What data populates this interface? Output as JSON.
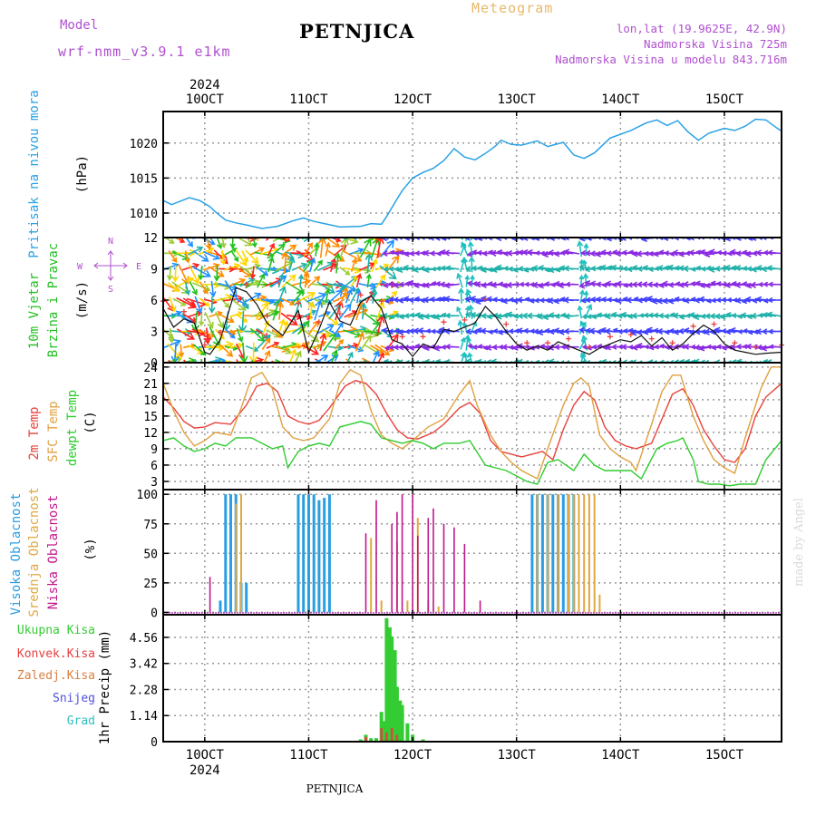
{
  "header": {
    "title": "PETNJICA",
    "subtitle": "Meteogram",
    "model_label": "Model",
    "model_name": "wrf-nmm_v3.9.1  e1km",
    "info_lines": [
      "lon,lat (19.9625E, 42.9N)",
      "Nadmorska Visina 725m",
      "Nadmorska Visina u modelu 843.716m"
    ]
  },
  "footer": {
    "station": "PETNJICA",
    "watermark": "made by Angel"
  },
  "colors": {
    "pressure": "#2aa2e6",
    "wind_label": "#22c022",
    "temp2m": "#e8413c",
    "sfc": "#e0a040",
    "dewpt": "#2ecc2e",
    "high_cloud": "#2a9ee0",
    "mid_cloud": "#e0a840",
    "low_cloud": "#c0188a",
    "total_precip": "#33cc33",
    "conv_precip": "#e84040",
    "snow_grid": "#d88040",
    "snow": "#5050e0",
    "graupel": "#30c0c0",
    "arrow_key": "#b050d0"
  },
  "chart_data": [
    {
      "type": "line",
      "title": "",
      "ylabel": [
        "Pritisak na nivou mora",
        "(hPa)"
      ],
      "x_top_labels": [
        "10OCT",
        "11OCT",
        "12OCT",
        "13OCT",
        "14OCT",
        "15OCT"
      ],
      "x_top_year": "2024",
      "x_range_days": [
        9.6,
        15.55
      ],
      "ylim": [
        1006.5,
        1024.5
      ],
      "yticks": [
        1010,
        1015,
        1020
      ],
      "series": [
        {
          "name": "Pritisak na nivou mora",
          "x": [
            9.6,
            9.68,
            9.75,
            9.85,
            9.95,
            10.05,
            10.1,
            10.2,
            10.3,
            10.4,
            10.55,
            10.7,
            10.85,
            10.95,
            11.05,
            11.15,
            11.3,
            11.5,
            11.6,
            11.7,
            11.75,
            11.85,
            11.9,
            12.0,
            12.1,
            12.2,
            12.3,
            12.4,
            12.5,
            12.6,
            12.7,
            12.8,
            12.85,
            12.95,
            13.05,
            13.2,
            13.3,
            13.45,
            13.55,
            13.65,
            13.75,
            13.9,
            14.1,
            14.25,
            14.35,
            14.45,
            14.55,
            14.65,
            14.75,
            14.85,
            15.0,
            15.1,
            15.2,
            15.3,
            15.4,
            15.5,
            15.55
          ],
          "values": [
            1011.8,
            1011.2,
            1011.6,
            1012.2,
            1011.8,
            1010.9,
            1010.2,
            1009.0,
            1008.6,
            1008.3,
            1007.8,
            1008.1,
            1008.9,
            1009.3,
            1008.8,
            1008.5,
            1008.0,
            1008.1,
            1008.5,
            1008.4,
            1009.5,
            1012.0,
            1013.2,
            1015.0,
            1015.8,
            1016.4,
            1017.5,
            1019.2,
            1018.0,
            1017.6,
            1018.5,
            1019.6,
            1020.4,
            1019.8,
            1019.7,
            1020.3,
            1019.5,
            1020.1,
            1018.3,
            1017.8,
            1018.6,
            1020.7,
            1021.8,
            1022.9,
            1023.3,
            1022.5,
            1023.2,
            1021.6,
            1020.4,
            1021.4,
            1022.1,
            1021.8,
            1022.4,
            1023.4,
            1023.3,
            1022.2,
            1021.7
          ]
        }
      ]
    },
    {
      "type": "line",
      "title": "",
      "ylabel": [
        "10m Vjetar",
        "Brzina i Pravac",
        "(m/s)"
      ],
      "arrow_key": {
        "top": "N",
        "left": "W",
        "right": "E",
        "bottom": "S"
      },
      "ylim": [
        0,
        12
      ],
      "yticks": [
        0,
        3,
        6,
        9,
        12
      ],
      "series": [
        {
          "name": "brzina vjetra",
          "x": [
            9.6,
            9.7,
            9.8,
            9.9,
            10.0,
            10.05,
            10.15,
            10.3,
            10.4,
            10.5,
            10.6,
            10.75,
            10.9,
            11.0,
            11.1,
            11.2,
            11.3,
            11.4,
            11.5,
            11.6,
            11.7,
            11.8,
            11.9,
            12.0,
            12.1,
            12.2,
            12.3,
            12.4,
            12.5,
            12.6,
            12.7,
            12.8,
            12.9,
            13.0,
            13.1,
            13.2,
            13.3,
            13.4,
            13.5,
            13.6,
            13.7,
            13.8,
            13.9,
            14.0,
            14.1,
            14.2,
            14.3,
            14.4,
            14.5,
            14.6,
            14.7,
            14.8,
            14.9,
            15.0,
            15.1,
            15.2,
            15.3,
            15.4,
            15.55
          ],
          "values": [
            5.2,
            3.4,
            4.2,
            3.8,
            1.0,
            0.8,
            2.2,
            7.2,
            6.8,
            5.6,
            3.8,
            2.6,
            5.0,
            1.0,
            3.2,
            5.8,
            4.0,
            3.6,
            5.8,
            6.4,
            5.2,
            2.2,
            1.8,
            0.6,
            1.8,
            1.4,
            3.2,
            3.0,
            3.4,
            3.8,
            5.4,
            4.4,
            3.0,
            1.8,
            1.2,
            1.6,
            1.2,
            2.0,
            1.6,
            1.2,
            0.8,
            1.4,
            1.8,
            2.2,
            2.0,
            2.6,
            1.6,
            2.4,
            1.2,
            1.8,
            2.8,
            3.6,
            3.0,
            1.8,
            1.2,
            1.0,
            0.8,
            0.9,
            1.0
          ]
        }
      ]
    },
    {
      "type": "line",
      "title": "",
      "ylabel": [
        "2m Temp",
        "SFC Temp",
        "dewpt Temp",
        "(C)"
      ],
      "ylim": [
        1.5,
        24.8
      ],
      "yticks": [
        3,
        6,
        9,
        12,
        15,
        18,
        21,
        24
      ],
      "series": [
        {
          "name": "2m Temp",
          "x": [
            9.6,
            9.7,
            9.8,
            9.9,
            10.0,
            10.1,
            10.25,
            10.4,
            10.5,
            10.6,
            10.7,
            10.8,
            10.9,
            11.0,
            11.1,
            11.2,
            11.35,
            11.45,
            11.55,
            11.65,
            11.75,
            11.85,
            11.95,
            12.05,
            12.2,
            12.3,
            12.45,
            12.55,
            12.65,
            12.75,
            12.85,
            12.95,
            13.05,
            13.15,
            13.25,
            13.35,
            13.45,
            13.55,
            13.65,
            13.75,
            13.85,
            13.95,
            14.05,
            14.15,
            14.3,
            14.4,
            14.5,
            14.6,
            14.7,
            14.8,
            14.9,
            15.0,
            15.1,
            15.2,
            15.3,
            15.4,
            15.55
          ],
          "values": [
            18.5,
            16.5,
            14.0,
            12.8,
            13.0,
            13.8,
            13.5,
            17.0,
            20.5,
            21.0,
            19.5,
            15.0,
            14.0,
            13.5,
            14.2,
            16.5,
            20.5,
            21.5,
            21.0,
            19.0,
            15.5,
            12.5,
            11.0,
            10.8,
            12.0,
            13.5,
            16.5,
            17.5,
            15.5,
            10.5,
            8.5,
            8.0,
            7.5,
            8.0,
            8.5,
            7.0,
            12.5,
            17.0,
            19.5,
            18.0,
            13.0,
            10.5,
            9.5,
            9.0,
            10.0,
            14.5,
            19.0,
            20.0,
            17.0,
            12.5,
            9.5,
            7.0,
            6.5,
            9.0,
            15.0,
            18.5,
            21.0
          ]
        },
        {
          "name": "SFC Temp",
          "x": [
            9.6,
            9.7,
            9.8,
            9.9,
            10.0,
            10.1,
            10.25,
            10.35,
            10.45,
            10.55,
            10.65,
            10.75,
            10.85,
            10.95,
            11.05,
            11.2,
            11.3,
            11.4,
            11.5,
            11.6,
            11.7,
            11.8,
            11.9,
            12.0,
            12.15,
            12.3,
            12.45,
            12.55,
            12.62,
            12.75,
            12.85,
            12.95,
            13.05,
            13.15,
            13.2,
            13.3,
            13.45,
            13.55,
            13.62,
            13.7,
            13.8,
            13.9,
            14.0,
            14.1,
            14.15,
            14.3,
            14.4,
            14.5,
            14.58,
            14.7,
            14.8,
            14.9,
            15.0,
            15.1,
            15.2,
            15.35,
            15.45,
            15.55
          ],
          "values": [
            21.0,
            16.0,
            12.0,
            9.5,
            10.5,
            12.0,
            11.5,
            16.5,
            22.0,
            23.0,
            20.0,
            13.0,
            11.0,
            10.5,
            11.0,
            14.5,
            21.0,
            23.5,
            22.5,
            16.0,
            11.5,
            10.0,
            9.0,
            10.5,
            13.0,
            14.5,
            19.0,
            21.5,
            17.0,
            11.5,
            8.5,
            6.5,
            5.0,
            4.0,
            3.5,
            9.0,
            17.0,
            21.0,
            22.0,
            20.5,
            11.5,
            9.0,
            7.5,
            6.5,
            5.0,
            13.5,
            19.5,
            22.5,
            22.5,
            15.0,
            10.5,
            7.0,
            5.5,
            4.5,
            11.0,
            20.0,
            24.0,
            24.0
          ]
        },
        {
          "name": "dewpt Temp",
          "x": [
            9.6,
            9.7,
            9.8,
            9.9,
            10.0,
            10.1,
            10.2,
            10.3,
            10.45,
            10.55,
            10.65,
            10.75,
            10.8,
            10.9,
            11.0,
            11.1,
            11.2,
            11.3,
            11.4,
            11.5,
            11.6,
            11.7,
            11.8,
            11.9,
            12.0,
            12.1,
            12.2,
            12.3,
            12.45,
            12.55,
            12.7,
            12.8,
            12.9,
            13.0,
            13.1,
            13.2,
            13.3,
            13.4,
            13.55,
            13.65,
            13.75,
            13.85,
            13.95,
            14.1,
            14.2,
            14.35,
            14.45,
            14.55,
            14.6,
            14.7,
            14.75,
            14.85,
            14.95,
            15.05,
            15.15,
            15.3,
            15.4,
            15.55
          ],
          "values": [
            10.5,
            11.0,
            9.5,
            8.5,
            9.0,
            10.0,
            9.5,
            11.0,
            11.0,
            10.0,
            9.0,
            9.5,
            5.5,
            8.5,
            9.5,
            10.0,
            9.5,
            13.0,
            13.5,
            14.0,
            13.5,
            11.0,
            10.5,
            10.0,
            10.5,
            10.0,
            9.0,
            10.0,
            10.0,
            10.5,
            6.0,
            5.5,
            5.0,
            4.0,
            3.0,
            2.5,
            6.5,
            7.0,
            5.0,
            8.0,
            6.0,
            5.0,
            5.0,
            5.0,
            3.5,
            9.0,
            10.0,
            10.5,
            11.0,
            7.0,
            3.0,
            2.5,
            2.5,
            2.2,
            2.5,
            2.5,
            7.0,
            10.5
          ]
        }
      ]
    },
    {
      "type": "bar",
      "title": "",
      "ylabel": [
        "Visoka Oblacnost",
        "Srednja Oblacnost",
        "Niska Oblacnost",
        "(%)"
      ],
      "ylim": [
        -2,
        104
      ],
      "yticks": [
        0,
        25,
        50,
        75,
        100
      ],
      "series": [
        {
          "name": "Visoka Oblacnost",
          "x": [
            10.15,
            10.2,
            10.25,
            10.3,
            10.35,
            10.4,
            10.9,
            10.95,
            11.0,
            11.05,
            11.1,
            11.15,
            11.2,
            13.15,
            13.2,
            13.25,
            13.3,
            13.35,
            13.4,
            13.45,
            13.5,
            13.55
          ],
          "values": [
            10,
            100,
            100,
            100,
            25,
            25,
            100,
            100,
            100,
            100,
            95,
            97,
            100,
            100,
            100,
            100,
            100,
            100,
            100,
            100,
            100,
            100
          ]
        },
        {
          "name": "Srednja Oblacnost",
          "x": [
            10.3,
            10.35,
            11.6,
            11.7,
            11.85,
            11.95,
            12.05,
            12.15,
            12.25,
            13.2,
            13.3,
            13.4,
            13.5,
            13.55,
            13.6,
            13.65,
            13.7,
            13.75,
            13.8
          ],
          "values": [
            92,
            100,
            63,
            10,
            60,
            10,
            80,
            10,
            5,
            100,
            100,
            100,
            100,
            100,
            100,
            100,
            100,
            100,
            15
          ]
        },
        {
          "name": "Niska Oblacnost",
          "x": [
            10.05,
            11.55,
            11.65,
            11.8,
            11.85,
            11.9,
            12.0,
            12.05,
            12.15,
            12.2,
            12.3,
            12.4,
            12.5,
            12.65
          ],
          "values": [
            30,
            67,
            95,
            75,
            85,
            100,
            100,
            65,
            80,
            88,
            75,
            72,
            58,
            10
          ]
        }
      ]
    },
    {
      "type": "bar",
      "title": "",
      "ylabel": [
        "Ukupna Kisa",
        "Konvek.Kisa",
        "Zaledj.Kisa",
        "Snijeg",
        "Grad",
        "1hr Precip (mm)"
      ],
      "x_bottom_labels": [
        "10OCT",
        "11OCT",
        "12OCT",
        "13OCT",
        "14OCT",
        "15OCT"
      ],
      "x_bottom_year": "2024",
      "ylim": [
        0,
        5.55
      ],
      "yticks": [
        0,
        1.14,
        2.28,
        3.42,
        4.56
      ],
      "series": [
        {
          "name": "Ukupna Kisa",
          "x": [
            11.5,
            11.55,
            11.6,
            11.65,
            11.7,
            11.72,
            11.75,
            11.78,
            11.8,
            11.83,
            11.85,
            11.88,
            11.9,
            11.95,
            12.0,
            12.1
          ],
          "values": [
            0.1,
            0.3,
            0.15,
            0.15,
            1.3,
            0.9,
            5.4,
            5.0,
            4.6,
            4.0,
            2.4,
            1.8,
            1.6,
            0.8,
            0.3,
            0.1
          ]
        },
        {
          "name": "Konvek.Kisa",
          "x": [
            11.55,
            11.7,
            11.75,
            11.8,
            11.85
          ],
          "values": [
            0.2,
            0.6,
            0.4,
            0.6,
            0.3
          ]
        },
        {
          "name": "Zaledj.Kisa",
          "x": [],
          "values": []
        },
        {
          "name": "Snijeg",
          "x": [],
          "values": []
        },
        {
          "name": "Grad",
          "x": [],
          "values": []
        }
      ]
    }
  ]
}
